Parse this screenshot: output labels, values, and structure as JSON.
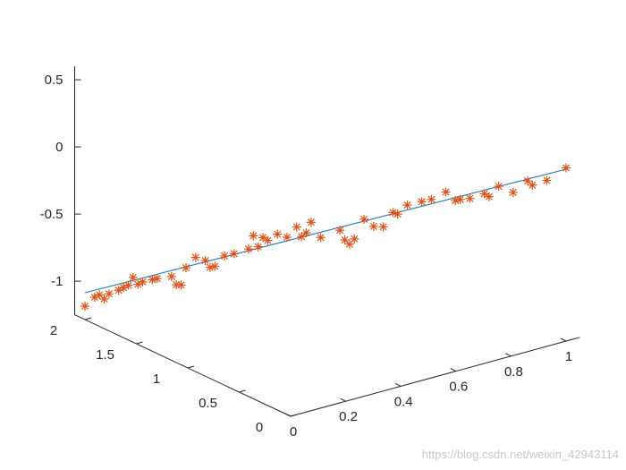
{
  "chart_data": {
    "type": "scatter",
    "view": "3d",
    "colors": {
      "line": "#1f77b4",
      "markers": "#d95319",
      "axes": "#262626"
    },
    "x_axis": {
      "ticks": [
        0,
        0.2,
        0.4,
        0.6,
        0.8,
        1
      ],
      "tick_labels": [
        "0",
        "0.2",
        "0.4",
        "0.6",
        "0.8",
        "1"
      ]
    },
    "y_axis": {
      "ticks": [
        0,
        0.5,
        1,
        1.5,
        2
      ],
      "tick_labels": [
        "0",
        "0.5",
        "1",
        "1.5",
        "2"
      ]
    },
    "z_axis": {
      "ticks": [
        -1,
        -0.5,
        0,
        0.5
      ],
      "tick_labels": [
        "-1",
        "-0.5",
        "0",
        "0.5"
      ]
    },
    "series": [
      {
        "type": "line",
        "points": [
          [
            0,
            2,
            -1.05
          ],
          [
            1,
            0,
            0.03
          ]
        ]
      },
      {
        "type": "scatter",
        "marker": "*",
        "points": [
          [
            0.0,
            2.0,
            -1.15
          ],
          [
            0.02,
            1.96,
            -1.08
          ],
          [
            0.03,
            1.94,
            -1.06
          ],
          [
            0.04,
            1.92,
            -1.09
          ],
          [
            0.05,
            1.9,
            -1.05
          ],
          [
            0.07,
            1.86,
            -1.02
          ],
          [
            0.08,
            1.84,
            -1.0
          ],
          [
            0.09,
            1.82,
            -0.98
          ],
          [
            0.1,
            1.8,
            -0.92
          ],
          [
            0.11,
            1.78,
            -0.97
          ],
          [
            0.12,
            1.76,
            -0.95
          ],
          [
            0.14,
            1.72,
            -0.93
          ],
          [
            0.15,
            1.7,
            -0.92
          ],
          [
            0.18,
            1.64,
            -0.9
          ],
          [
            0.19,
            1.62,
            -0.96
          ],
          [
            0.2,
            1.6,
            -0.96
          ],
          [
            0.21,
            1.58,
            -0.83
          ],
          [
            0.23,
            1.54,
            -0.75
          ],
          [
            0.25,
            1.5,
            -0.77
          ],
          [
            0.26,
            1.48,
            -0.82
          ],
          [
            0.27,
            1.46,
            -0.81
          ],
          [
            0.29,
            1.42,
            -0.73
          ],
          [
            0.31,
            1.38,
            -0.71
          ],
          [
            0.34,
            1.32,
            -0.67
          ],
          [
            0.35,
            1.3,
            -0.57
          ],
          [
            0.36,
            1.28,
            -0.65
          ],
          [
            0.37,
            1.26,
            -0.58
          ],
          [
            0.38,
            1.24,
            -0.6
          ],
          [
            0.4,
            1.2,
            -0.55
          ],
          [
            0.42,
            1.16,
            -0.57
          ],
          [
            0.44,
            1.12,
            -0.49
          ],
          [
            0.45,
            1.1,
            -0.56
          ],
          [
            0.46,
            1.08,
            -0.53
          ],
          [
            0.47,
            1.06,
            -0.45
          ],
          [
            0.49,
            1.02,
            -0.56
          ],
          [
            0.53,
            0.94,
            -0.5
          ],
          [
            0.54,
            0.92,
            -0.57
          ],
          [
            0.55,
            0.9,
            -0.6
          ],
          [
            0.56,
            0.88,
            -0.56
          ],
          [
            0.58,
            0.84,
            -0.41
          ],
          [
            0.6,
            0.8,
            -0.46
          ],
          [
            0.62,
            0.76,
            -0.46
          ],
          [
            0.64,
            0.72,
            -0.35
          ],
          [
            0.65,
            0.7,
            -0.36
          ],
          [
            0.67,
            0.66,
            -0.29
          ],
          [
            0.7,
            0.6,
            -0.26
          ],
          [
            0.72,
            0.56,
            -0.24
          ],
          [
            0.75,
            0.5,
            -0.18
          ],
          [
            0.77,
            0.46,
            -0.24
          ],
          [
            0.78,
            0.44,
            -0.23
          ],
          [
            0.8,
            0.4,
            -0.22
          ],
          [
            0.83,
            0.34,
            -0.18
          ],
          [
            0.84,
            0.32,
            -0.2
          ],
          [
            0.86,
            0.28,
            -0.12
          ],
          [
            0.89,
            0.22,
            -0.16
          ],
          [
            0.92,
            0.16,
            -0.07
          ],
          [
            0.93,
            0.14,
            -0.1
          ],
          [
            0.96,
            0.08,
            -0.06
          ],
          [
            1.0,
            0.0,
            0.04
          ]
        ]
      }
    ]
  },
  "watermark": "https://blog.csdn.net/weixin_42943114"
}
